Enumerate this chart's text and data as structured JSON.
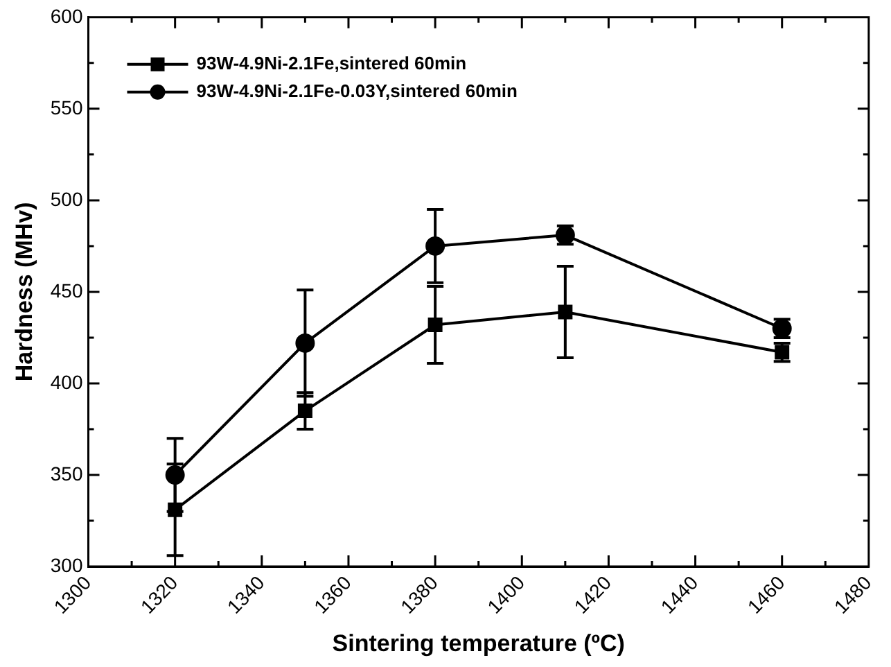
{
  "chart_data": {
    "type": "line",
    "xlabel": "Sintering temperature (ºC)",
    "ylabel": "Hardness (MHv)",
    "x": [
      1320,
      1350,
      1380,
      1410,
      1460
    ],
    "series": [
      {
        "name": "93W-4.9Ni-2.1Fe,sintered 60min",
        "color": "#000000",
        "marker": "square",
        "values": [
          331,
          385,
          432,
          439,
          417
        ],
        "errors": [
          25,
          10,
          21,
          25,
          5
        ]
      },
      {
        "name": "93W-4.9Ni-2.1Fe-0.03Y,sintered 60min",
        "color": "#000000",
        "marker": "circle",
        "values": [
          350,
          422,
          475,
          481,
          430
        ],
        "errors": [
          20,
          29,
          20,
          5,
          5
        ]
      }
    ],
    "xlim": [
      1300,
      1480
    ],
    "xticks": [
      1300,
      {
        "value": 1310,
        "label": null
      },
      1320,
      {
        "value": 1330,
        "label": null
      },
      1340,
      {
        "value": 1350,
        "label": null
      },
      1360,
      {
        "value": 1370,
        "label": null
      },
      1380,
      {
        "value": 1390,
        "label": null
      },
      1400,
      {
        "value": 1410,
        "label": null
      },
      1420,
      {
        "value": 1430,
        "label": null
      },
      1440,
      {
        "value": 1450,
        "label": null
      },
      1460,
      {
        "value": 1470,
        "label": null
      },
      1480
    ],
    "ylim": [
      300,
      600
    ],
    "yticks": [
      300,
      {
        "value": 325,
        "label": null
      },
      350,
      {
        "value": 375,
        "label": null
      },
      400,
      {
        "value": 425,
        "label": null
      },
      450,
      {
        "value": 475,
        "label": null
      },
      500,
      {
        "value": 525,
        "label": null
      },
      550,
      {
        "value": 575,
        "label": null
      },
      600
    ],
    "grid": false,
    "legend": "top left",
    "line_style": "solid"
  }
}
